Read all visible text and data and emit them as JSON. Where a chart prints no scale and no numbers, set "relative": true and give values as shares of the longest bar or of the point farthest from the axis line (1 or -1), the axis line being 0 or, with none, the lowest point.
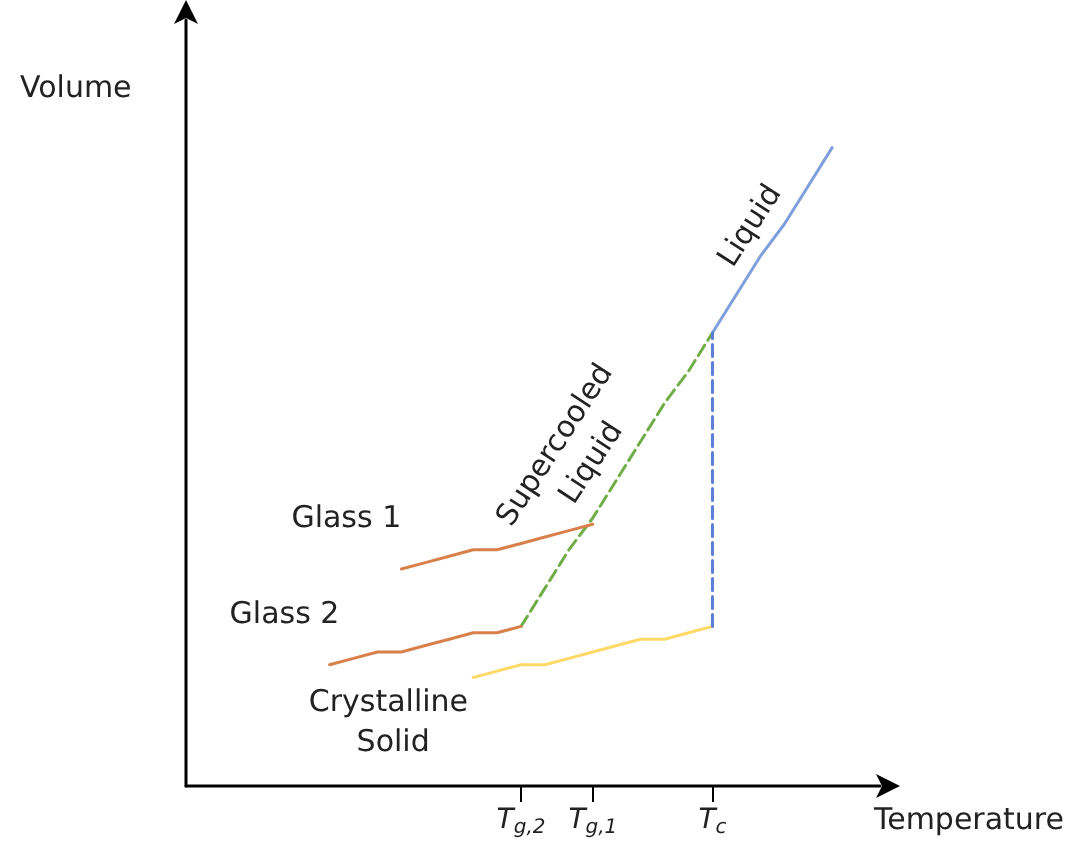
{
  "chart_data": {
    "type": "line",
    "relative": true,
    "xlabel": "Temperature",
    "ylabel": "Volume",
    "categories": [
      null,
      null,
      null,
      null,
      null,
      null,
      null,
      null,
      null,
      null,
      null,
      null,
      null,
      null,
      "T$_{g,2}$",
      null,
      null,
      "T$_{g,1}$",
      null,
      null,
      null,
      null,
      "T$_{c}$",
      null,
      null,
      null,
      null,
      null,
      null,
      null
    ],
    "tick_labels": "x",
    "legend": false,
    "marker": "none",
    "series": [
      {
        "name": "Liquid",
        "color": "#7f9fdc",
        "line_style": "solid",
        "values": [
          null,
          null,
          null,
          null,
          null,
          null,
          null,
          null,
          null,
          null,
          null,
          null,
          null,
          null,
          null,
          null,
          null,
          null,
          null,
          null,
          null,
          null,
          0.71,
          0.77,
          0.83,
          0.88,
          0.94,
          1,
          null,
          null
        ]
      },
      {
        "name": "Supercooled Liquid",
        "color": "#70ad47",
        "line_style": "dashed",
        "values": [
          null,
          null,
          null,
          null,
          null,
          null,
          null,
          null,
          null,
          null,
          null,
          null,
          null,
          null,
          0.25,
          0.31,
          0.37,
          0.42,
          0.48,
          0.54,
          0.6,
          0.65,
          0.71,
          null,
          null,
          null,
          null,
          null,
          null,
          null
        ]
      },
      {
        "name": "Glass 1",
        "color": "#d9804a",
        "line_style": "solid",
        "values": [
          null,
          null,
          null,
          null,
          null,
          null,
          null,
          null,
          null,
          0.34,
          0.35,
          0.36,
          0.37,
          0.37,
          0.38,
          0.39,
          0.4,
          0.41,
          null,
          null,
          null,
          null,
          null,
          null,
          null,
          null,
          null,
          null,
          null,
          null
        ]
      },
      {
        "name": "Glass 2",
        "color": "#d9804a",
        "line_style": "solid",
        "values": [
          null,
          null,
          null,
          null,
          null,
          null,
          0.19,
          0.2,
          0.21,
          0.21,
          0.22,
          0.23,
          0.24,
          0.24,
          0.25,
          null,
          null,
          null,
          null,
          null,
          null,
          null,
          null,
          null,
          null,
          null,
          null,
          null,
          null,
          null
        ]
      },
      {
        "name": "Crystalline Solid",
        "color": "#ffd966",
        "line_style": "solid",
        "values": [
          null,
          null,
          null,
          null,
          null,
          null,
          null,
          null,
          null,
          null,
          null,
          null,
          0.17,
          0.18,
          0.19,
          0.19,
          0.2,
          0.21,
          0.22,
          0.23,
          0.23,
          0.24,
          0.25,
          null,
          null,
          null,
          null,
          null,
          null,
          null
        ]
      },
      {
        "color": "#5b7fd6",
        "line_style": "dashed",
        "x": [
          "T$_{c}$",
          "T$_{c}$"
        ],
        "values": [
          0.25,
          0.71
        ]
      }
    ]
  }
}
